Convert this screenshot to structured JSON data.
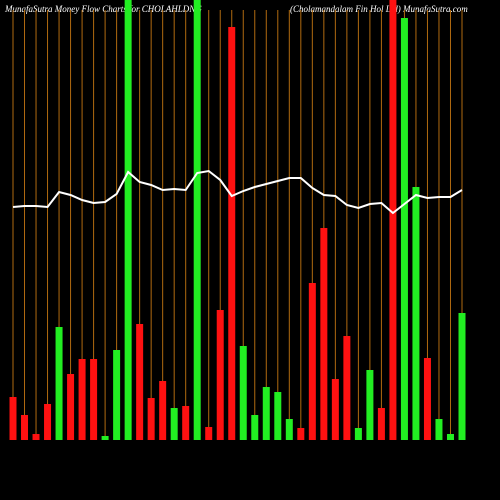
{
  "chart_data": {
    "type": "bar",
    "title": "MunafaSutra  Money Flow  Charts for CHOLAHLDNG",
    "subtitle": "(Cholamandalam Fin  Hol Ltd) MunafaSutra.com",
    "categories": [
      null,
      null,
      null,
      null,
      null,
      null,
      null,
      null,
      null,
      null,
      null,
      null,
      null,
      null,
      null,
      null,
      null,
      null,
      null,
      null,
      null,
      null,
      null,
      null,
      null,
      null,
      null,
      null,
      null,
      null,
      null,
      null,
      null,
      null,
      null,
      null,
      null,
      null,
      null,
      null
    ],
    "values": [
      43,
      25,
      6,
      36,
      113,
      66,
      81,
      81,
      4,
      90,
      440,
      116,
      42,
      59,
      32,
      34,
      440,
      13,
      130,
      413,
      94,
      25,
      53,
      48,
      21,
      12,
      157,
      212,
      61,
      104,
      12,
      70,
      32,
      440,
      422,
      253,
      82,
      21,
      6,
      127
    ],
    "colors": [
      "#ff1111",
      "#ff1111",
      "#ff1111",
      "#ff1111",
      "#22ee22",
      "#ff1111",
      "#ff1111",
      "#ff1111",
      "#22ee22",
      "#22ee22",
      "#22ee22",
      "#ff1111",
      "#ff1111",
      "#ff1111",
      "#22ee22",
      "#ff1111",
      "#22ee22",
      "#ff1111",
      "#ff1111",
      "#ff1111",
      "#22ee22",
      "#22ee22",
      "#22ee22",
      "#22ee22",
      "#22ee22",
      "#ff1111",
      "#ff1111",
      "#ff1111",
      "#ff1111",
      "#ff1111",
      "#22ee22",
      "#22ee22",
      "#ff1111",
      "#ff1111",
      "#22ee22",
      "#22ee22",
      "#ff1111",
      "#22ee22",
      "#22ee22",
      "#22ee22"
    ],
    "line": {
      "color": "#ffffff",
      "values": [
        233,
        234,
        234,
        233,
        248,
        245,
        240,
        237,
        238,
        246,
        268,
        258,
        255,
        250,
        251,
        250,
        267,
        269,
        260,
        244,
        249,
        253,
        256,
        259,
        262,
        262,
        252,
        245,
        244,
        235,
        232,
        236,
        237,
        227,
        236,
        245,
        242,
        243,
        243,
        250
      ]
    },
    "ylim": [
      0,
      440
    ],
    "grid_color": "#b06a10"
  }
}
